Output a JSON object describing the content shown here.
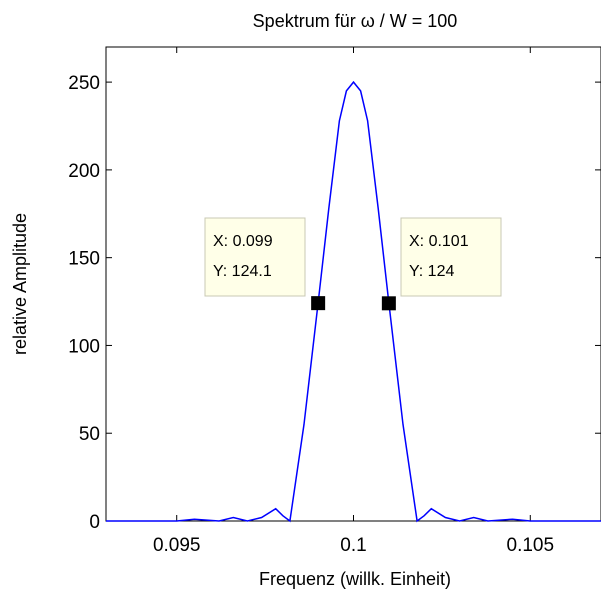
{
  "chart_data": {
    "type": "line",
    "title": "Spektrum für ω / W = 100",
    "xlabel": "Frequenz  (willk. Einheit)",
    "ylabel": "relative Amplitude",
    "xlim": [
      0.093,
      0.107
    ],
    "ylim": [
      0,
      270
    ],
    "xticks": [
      0.095,
      0.1,
      0.105
    ],
    "xtick_labels": [
      "0.095",
      "0.1",
      "0.105"
    ],
    "yticks": [
      0,
      50,
      100,
      150,
      200,
      250
    ],
    "ytick_labels": [
      "0",
      "50",
      "100",
      "150",
      "200",
      "250"
    ],
    "grid": false,
    "series": [
      {
        "color": "#0000ff",
        "x": [
          0.093,
          0.0945,
          0.095,
          0.0955,
          0.0962,
          0.0966,
          0.097,
          0.0974,
          0.0978,
          0.098,
          0.0982,
          0.0986,
          0.099,
          0.0993,
          0.0996,
          0.0998,
          0.1,
          0.1002,
          0.1004,
          0.1007,
          0.101,
          0.1014,
          0.1018,
          0.102,
          0.1022,
          0.1026,
          0.103,
          0.1034,
          0.1038,
          0.1045,
          0.105,
          0.107
        ],
        "y": [
          0,
          0,
          0,
          1,
          0,
          2,
          0,
          2,
          7,
          3,
          0,
          55,
          124.1,
          178,
          228,
          245,
          250,
          245,
          228,
          178,
          124,
          55,
          0,
          3,
          7,
          2,
          0,
          2,
          0,
          1,
          0,
          0
        ]
      }
    ],
    "datatips": [
      {
        "x_label": "X: 0.099",
        "y_label": "Y: 124.1",
        "x": 0.099,
        "y": 124.1
      },
      {
        "x_label": "X: 0.101",
        "y_label": "Y: 124",
        "x": 0.101,
        "y": 124
      }
    ]
  }
}
